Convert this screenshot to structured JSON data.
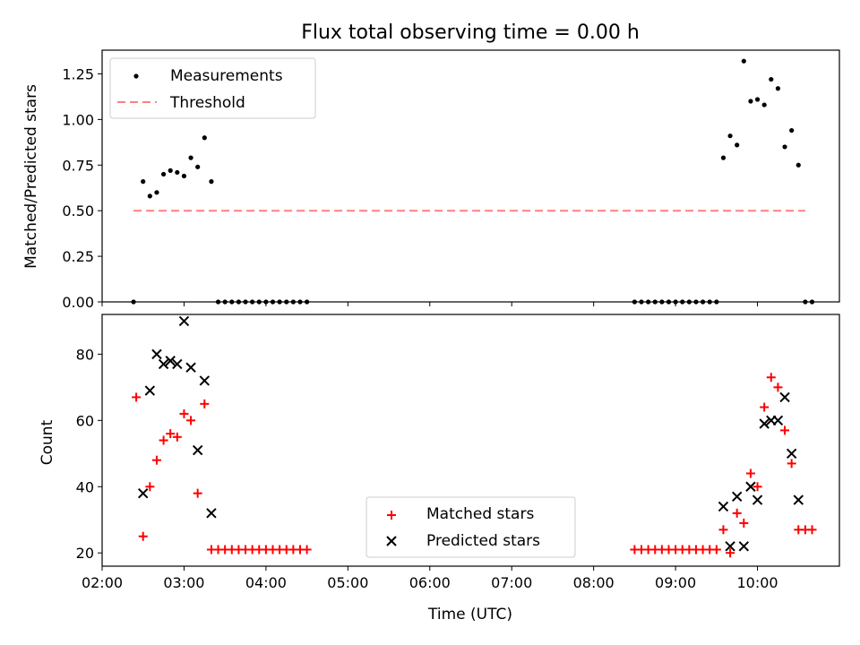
{
  "chart_data": [
    {
      "type": "scatter",
      "title": "Flux total observing time = 0.00 h",
      "xlabel": "",
      "ylabel": "Matched/Predicted stars",
      "ylim": [
        0,
        1.38
      ],
      "xlim": [
        "02:00",
        "11:00"
      ],
      "yticks": [
        "0.00",
        "0.25",
        "0.50",
        "0.75",
        "1.00",
        "1.25"
      ],
      "legend_position": "top-left",
      "series": [
        {
          "name": "Measurements",
          "color": "#000000",
          "marker": "dot",
          "x": [
            "02:23",
            "02:30",
            "02:35",
            "02:40",
            "02:45",
            "02:50",
            "02:55",
            "03:00",
            "03:05",
            "03:10",
            "03:15",
            "03:20",
            "03:25",
            "03:30",
            "03:35",
            "03:40",
            "03:45",
            "03:50",
            "03:55",
            "04:00",
            "04:05",
            "04:10",
            "04:15",
            "04:20",
            "04:25",
            "04:30",
            "08:30",
            "08:35",
            "08:40",
            "08:45",
            "08:50",
            "08:55",
            "09:00",
            "09:05",
            "09:10",
            "09:15",
            "09:20",
            "09:25",
            "09:30",
            "09:35",
            "09:40",
            "09:45",
            "09:50",
            "09:55",
            "10:00",
            "10:05",
            "10:10",
            "10:15",
            "10:20",
            "10:25",
            "10:30",
            "10:35",
            "10:40"
          ],
          "y": [
            0.0,
            0.66,
            0.58,
            0.6,
            0.7,
            0.72,
            0.71,
            0.69,
            0.79,
            0.74,
            0.9,
            0.66,
            0.0,
            0.0,
            0.0,
            0.0,
            0.0,
            0.0,
            0.0,
            0.0,
            0.0,
            0.0,
            0.0,
            0.0,
            0.0,
            0.0,
            0.0,
            0.0,
            0.0,
            0.0,
            0.0,
            0.0,
            0.0,
            0.0,
            0.0,
            0.0,
            0.0,
            0.0,
            0.0,
            0.79,
            0.91,
            0.86,
            1.32,
            1.1,
            1.11,
            1.08,
            1.22,
            1.17,
            0.85,
            0.94,
            0.75,
            0.0,
            0.0
          ]
        },
        {
          "name": "Threshold",
          "color": "#ff7f7f",
          "style": "dashed",
          "x": [
            "02:23",
            "10:35"
          ],
          "y": [
            0.5,
            0.5
          ]
        }
      ]
    },
    {
      "type": "scatter",
      "title": "",
      "xlabel": "Time (UTC)",
      "ylabel": "Count",
      "ylim": [
        16,
        92
      ],
      "xlim": [
        "02:00",
        "11:00"
      ],
      "xticks": [
        "02:00",
        "03:00",
        "04:00",
        "05:00",
        "06:00",
        "07:00",
        "08:00",
        "09:00",
        "10:00"
      ],
      "yticks": [
        "20",
        "40",
        "60",
        "80"
      ],
      "legend_position": "bottom-center",
      "series": [
        {
          "name": "Matched stars",
          "color": "#ff0000",
          "marker": "plus",
          "x": [
            "02:25",
            "02:30",
            "02:35",
            "02:40",
            "02:45",
            "02:50",
            "02:55",
            "03:00",
            "03:05",
            "03:10",
            "03:15",
            "03:20",
            "03:25",
            "03:30",
            "03:35",
            "03:40",
            "03:45",
            "03:50",
            "03:55",
            "04:00",
            "04:05",
            "04:10",
            "04:15",
            "04:20",
            "04:25",
            "04:30",
            "08:30",
            "08:35",
            "08:40",
            "08:45",
            "08:50",
            "08:55",
            "09:00",
            "09:05",
            "09:10",
            "09:15",
            "09:20",
            "09:25",
            "09:30",
            "09:35",
            "09:40",
            "09:45",
            "09:50",
            "09:55",
            "10:00",
            "10:05",
            "10:10",
            "10:15",
            "10:20",
            "10:25",
            "10:30",
            "10:35",
            "10:40"
          ],
          "y": [
            67,
            25,
            40,
            48,
            54,
            56,
            55,
            62,
            60,
            38,
            65,
            21,
            21,
            21,
            21,
            21,
            21,
            21,
            21,
            21,
            21,
            21,
            21,
            21,
            21,
            21,
            21,
            21,
            21,
            21,
            21,
            21,
            21,
            21,
            21,
            21,
            21,
            21,
            21,
            27,
            20,
            32,
            29,
            44,
            40,
            64,
            73,
            70,
            57,
            47,
            27,
            27,
            27
          ]
        },
        {
          "name": "Predicted stars",
          "color": "#000000",
          "marker": "x",
          "x": [
            "02:30",
            "02:35",
            "02:40",
            "02:45",
            "02:50",
            "02:55",
            "03:00",
            "03:05",
            "03:10",
            "03:15",
            "03:20",
            "09:35",
            "09:40",
            "09:45",
            "09:50",
            "09:55",
            "10:00",
            "10:05",
            "10:10",
            "10:15",
            "10:20",
            "10:25",
            "10:30"
          ],
          "y": [
            38,
            69,
            80,
            77,
            78,
            77,
            90,
            76,
            51,
            72,
            32,
            34,
            22,
            37,
            22,
            40,
            36,
            59,
            60,
            60,
            67,
            50,
            36
          ]
        }
      ]
    }
  ]
}
